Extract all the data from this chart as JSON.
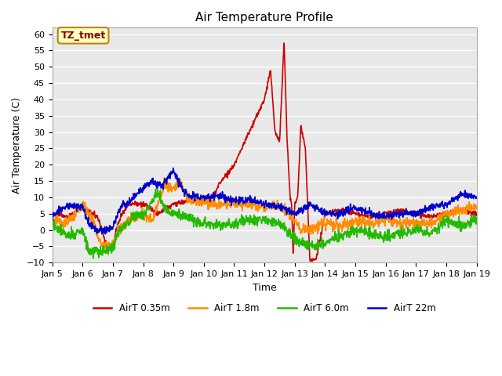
{
  "title": "Air Temperature Profile",
  "xlabel": "Time",
  "ylabel": "Air Temperature (C)",
  "ylim": [
    -10,
    62
  ],
  "yticks": [
    -10,
    -5,
    0,
    5,
    10,
    15,
    20,
    25,
    30,
    35,
    40,
    45,
    50,
    55,
    60
  ],
  "annotation_text": "TZ_tmet",
  "annotation_fg": "#8B0000",
  "annotation_bg": "#FFFFC0",
  "annotation_border": "#B8860B",
  "plot_bg": "#E8E8E8",
  "grid_color": "#FFFFFF",
  "colors": [
    "#CC0000",
    "#FF8C00",
    "#22BB00",
    "#0000CC"
  ],
  "legend_labels": [
    "AirT 0.35m",
    "AirT 1.8m",
    "AirT 6.0m",
    "AirT 22m"
  ],
  "x_tick_labels": [
    "Jan 5",
    "Jan 6",
    "Jan 7",
    "Jan 8",
    "Jan 9",
    "Jan 10",
    "Jan 11",
    "Jan 12",
    "Jan 13",
    "Jan 14",
    "Jan 15",
    "Jan 16",
    "Jan 17",
    "Jan 18",
    "Jan 19"
  ],
  "linewidth": 1.2,
  "title_fontsize": 11,
  "tick_fontsize": 8,
  "label_fontsize": 9,
  "legend_fontsize": 8.5
}
